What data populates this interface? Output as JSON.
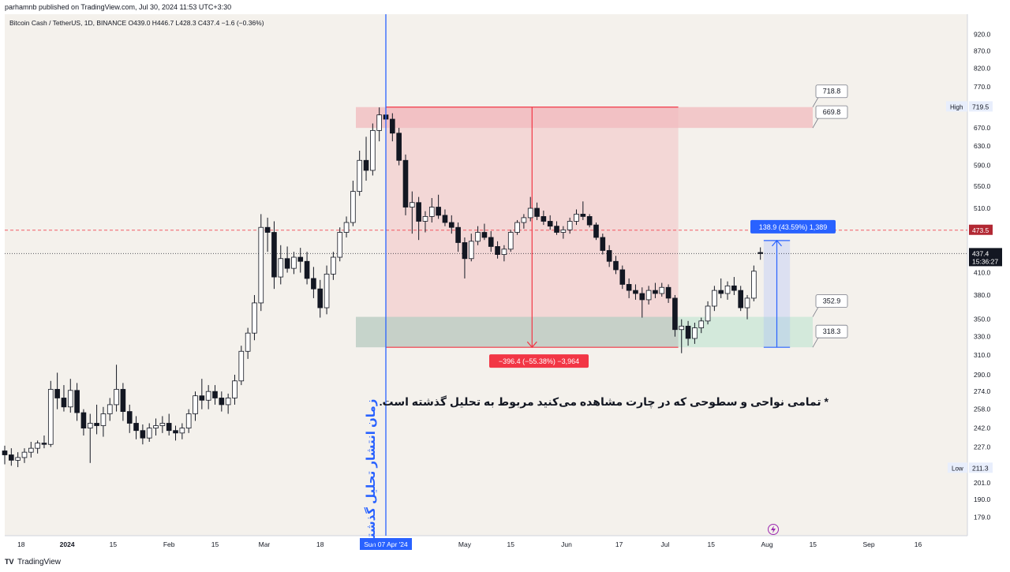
{
  "header": {
    "published_text": "parhamnb published on TradingView.com, Jul 30, 2024 11:53 UTC+3:30"
  },
  "footer": {
    "logo_text": "TV",
    "brand": "TradingView"
  },
  "colors": {
    "background": "#f4f1ec",
    "up_candle": "#ffffff",
    "down_candle": "#131722",
    "red_zone": "#f2b9bd",
    "green_zone": "#c8e6d6",
    "red_line": "#f23645",
    "blue_line": "#2962ff",
    "price_axis_bg": "#ffffff"
  },
  "chart_data": {
    "type": "candlestick",
    "title": "Bitcoin Cash / TetherUS, 1D, BINANCE  O439.0  H446.7  L428.3  C437.4  −1.6 (−0.36%)",
    "y_axis": {
      "scale": "log",
      "ylim": [
        168,
        985
      ],
      "ticks": [
        "920.0",
        "870.0",
        "820.0",
        "770.0",
        "719.5",
        "670.0",
        "630.0",
        "590.0",
        "550.0",
        "510.0",
        "473.5",
        "437.4",
        "410.0",
        "380.0",
        "350.0",
        "330.0",
        "310.0",
        "290.0",
        "274.0",
        "258.0",
        "242.0",
        "227.0",
        "211.3",
        "201.0",
        "190.0",
        "179.0"
      ]
    },
    "x_axis": {
      "range": [
        "2023-12-13",
        "2024-10-01"
      ],
      "ticks": [
        "18",
        "2024",
        "15",
        "Feb",
        "15",
        "Mar",
        "18",
        "Apr",
        "5",
        "May",
        "15",
        "Jun",
        "17",
        "Jul",
        "15",
        "Aug",
        "15",
        "Sep",
        "16"
      ],
      "highlight_label": "Sun 07 Apr '24"
    },
    "ohlc": [
      [
        "2023-12-13",
        224,
        228,
        214,
        221
      ],
      [
        "2023-12-15",
        221,
        226,
        213,
        217
      ],
      [
        "2023-12-17",
        217,
        223,
        212,
        219
      ],
      [
        "2023-12-19",
        219,
        226,
        215,
        223
      ],
      [
        "2023-12-21",
        223,
        231,
        219,
        226
      ],
      [
        "2023-12-23",
        226,
        232,
        222,
        230
      ],
      [
        "2023-12-25",
        230,
        236,
        226,
        229
      ],
      [
        "2023-12-27",
        229,
        284,
        227,
        276
      ],
      [
        "2023-12-29",
        276,
        292,
        258,
        268
      ],
      [
        "2023-12-31",
        268,
        280,
        256,
        260
      ],
      [
        "2024-01-02",
        260,
        286,
        255,
        275
      ],
      [
        "2024-01-04",
        275,
        282,
        248,
        255
      ],
      [
        "2024-01-06",
        255,
        258,
        236,
        242
      ],
      [
        "2024-01-08",
        242,
        254,
        215,
        246
      ],
      [
        "2024-01-10",
        246,
        262,
        237,
        244
      ],
      [
        "2024-01-12",
        244,
        260,
        235,
        254
      ],
      [
        "2024-01-14",
        254,
        268,
        248,
        262
      ],
      [
        "2024-01-16",
        262,
        300,
        256,
        276
      ],
      [
        "2024-01-18",
        276,
        282,
        248,
        256
      ],
      [
        "2024-01-20",
        256,
        262,
        238,
        246
      ],
      [
        "2024-01-22",
        246,
        252,
        233,
        240
      ],
      [
        "2024-01-24",
        240,
        245,
        229,
        234
      ],
      [
        "2024-01-26",
        234,
        246,
        231,
        242
      ],
      [
        "2024-01-28",
        242,
        250,
        236,
        244
      ],
      [
        "2024-01-30",
        244,
        252,
        238,
        246
      ],
      [
        "2024-02-01",
        246,
        254,
        236,
        240
      ],
      [
        "2024-02-03",
        240,
        244,
        232,
        238
      ],
      [
        "2024-02-05",
        238,
        246,
        233,
        242
      ],
      [
        "2024-02-07",
        242,
        258,
        238,
        254
      ],
      [
        "2024-02-09",
        254,
        274,
        248,
        270
      ],
      [
        "2024-02-11",
        270,
        286,
        258,
        266
      ],
      [
        "2024-02-13",
        266,
        280,
        258,
        274
      ],
      [
        "2024-02-15",
        274,
        280,
        262,
        268
      ],
      [
        "2024-02-17",
        268,
        274,
        256,
        262
      ],
      [
        "2024-02-19",
        262,
        272,
        254,
        268
      ],
      [
        "2024-02-21",
        268,
        290,
        262,
        284
      ],
      [
        "2024-02-23",
        284,
        320,
        280,
        314
      ],
      [
        "2024-02-25",
        314,
        340,
        306,
        334
      ],
      [
        "2024-02-27",
        334,
        380,
        326,
        370
      ],
      [
        "2024-02-29",
        370,
        500,
        360,
        478
      ],
      [
        "2024-03-02",
        478,
        494,
        440,
        470
      ],
      [
        "2024-03-04",
        470,
        488,
        388,
        404
      ],
      [
        "2024-03-06",
        404,
        450,
        394,
        430
      ],
      [
        "2024-03-08",
        430,
        448,
        410,
        416
      ],
      [
        "2024-03-10",
        416,
        440,
        408,
        432
      ],
      [
        "2024-03-12",
        432,
        446,
        410,
        426
      ],
      [
        "2024-03-14",
        426,
        440,
        394,
        402
      ],
      [
        "2024-03-16",
        402,
        418,
        376,
        388
      ],
      [
        "2024-03-18",
        388,
        400,
        352,
        364
      ],
      [
        "2024-03-20",
        364,
        420,
        356,
        408
      ],
      [
        "2024-03-22",
        408,
        440,
        400,
        432
      ],
      [
        "2024-03-24",
        432,
        478,
        426,
        470
      ],
      [
        "2024-03-26",
        470,
        496,
        462,
        486
      ],
      [
        "2024-03-28",
        486,
        560,
        480,
        540
      ],
      [
        "2024-03-30",
        540,
        620,
        532,
        600
      ],
      [
        "2024-04-01",
        600,
        650,
        560,
        580
      ],
      [
        "2024-04-03",
        580,
        680,
        570,
        664
      ],
      [
        "2024-04-05",
        664,
        718,
        640,
        700
      ],
      [
        "2024-04-07",
        700,
        720,
        660,
        690
      ],
      [
        "2024-04-09",
        690,
        704,
        640,
        658
      ],
      [
        "2024-04-11",
        658,
        670,
        590,
        600
      ],
      [
        "2024-04-13",
        600,
        612,
        498,
        512
      ],
      [
        "2024-04-15",
        512,
        540,
        468,
        520
      ],
      [
        "2024-04-17",
        520,
        530,
        458,
        488
      ],
      [
        "2024-04-19",
        488,
        505,
        470,
        496
      ],
      [
        "2024-04-21",
        496,
        528,
        486,
        512
      ],
      [
        "2024-04-23",
        512,
        534,
        492,
        498
      ],
      [
        "2024-04-25",
        498,
        508,
        480,
        486
      ],
      [
        "2024-04-27",
        486,
        498,
        468,
        478
      ],
      [
        "2024-04-29",
        478,
        486,
        440,
        454
      ],
      [
        "2024-05-01",
        454,
        462,
        402,
        430
      ],
      [
        "2024-05-03",
        430,
        468,
        426,
        456
      ],
      [
        "2024-05-05",
        456,
        480,
        450,
        470
      ],
      [
        "2024-05-07",
        470,
        484,
        458,
        462
      ],
      [
        "2024-05-09",
        462,
        472,
        440,
        448
      ],
      [
        "2024-05-11",
        448,
        456,
        430,
        436
      ],
      [
        "2024-05-13",
        436,
        450,
        426,
        444
      ],
      [
        "2024-05-15",
        444,
        474,
        440,
        470
      ],
      [
        "2024-05-17",
        470,
        490,
        466,
        486
      ],
      [
        "2024-05-19",
        486,
        500,
        476,
        494
      ],
      [
        "2024-05-21",
        494,
        530,
        488,
        510
      ],
      [
        "2024-05-23",
        510,
        520,
        490,
        496
      ],
      [
        "2024-05-25",
        496,
        506,
        482,
        488
      ],
      [
        "2024-05-27",
        488,
        498,
        474,
        480
      ],
      [
        "2024-05-29",
        480,
        488,
        466,
        470
      ],
      [
        "2024-05-31",
        470,
        480,
        460,
        474
      ],
      [
        "2024-06-02",
        474,
        494,
        468,
        488
      ],
      [
        "2024-06-04",
        488,
        508,
        482,
        500
      ],
      [
        "2024-06-06",
        500,
        522,
        490,
        496
      ],
      [
        "2024-06-08",
        496,
        500,
        478,
        482
      ],
      [
        "2024-06-10",
        482,
        486,
        458,
        462
      ],
      [
        "2024-06-12",
        462,
        468,
        436,
        442
      ],
      [
        "2024-06-14",
        442,
        450,
        418,
        426
      ],
      [
        "2024-06-16",
        426,
        434,
        408,
        414
      ],
      [
        "2024-06-18",
        414,
        420,
        388,
        394
      ],
      [
        "2024-06-20",
        394,
        402,
        376,
        386
      ],
      [
        "2024-06-22",
        386,
        394,
        374,
        382
      ],
      [
        "2024-06-24",
        382,
        390,
        352,
        374
      ],
      [
        "2024-06-26",
        374,
        392,
        368,
        386
      ],
      [
        "2024-06-28",
        386,
        396,
        376,
        382
      ],
      [
        "2024-06-30",
        382,
        396,
        378,
        390
      ],
      [
        "2024-07-02",
        390,
        394,
        370,
        376
      ],
      [
        "2024-07-04",
        376,
        380,
        330,
        338
      ],
      [
        "2024-07-06",
        338,
        350,
        312,
        342
      ],
      [
        "2024-07-08",
        342,
        348,
        320,
        328
      ],
      [
        "2024-07-10",
        328,
        346,
        322,
        340
      ],
      [
        "2024-07-12",
        340,
        352,
        334,
        348
      ],
      [
        "2024-07-14",
        348,
        372,
        344,
        366
      ],
      [
        "2024-07-16",
        366,
        392,
        360,
        386
      ],
      [
        "2024-07-18",
        386,
        402,
        376,
        382
      ],
      [
        "2024-07-20",
        382,
        398,
        374,
        392
      ],
      [
        "2024-07-22",
        392,
        404,
        380,
        386
      ],
      [
        "2024-07-24",
        386,
        392,
        360,
        364
      ],
      [
        "2024-07-26",
        364,
        380,
        350,
        376
      ],
      [
        "2024-07-28",
        376,
        420,
        372,
        412
      ],
      [
        "2024-07-30",
        439,
        446.7,
        428.3,
        437.4
      ]
    ],
    "price_labels": {
      "high_label": "High",
      "high_value": "719.5",
      "low_label": "Low",
      "low_value": "211.3",
      "level_473": "473.5",
      "current_price": "437.4",
      "countdown": "15:36:27"
    },
    "annotations": {
      "red_zone_levels": [
        "718.8",
        "669.8"
      ],
      "green_zone_levels": [
        "352.9",
        "318.3"
      ],
      "drop_label": "−396.4 (−55.38%) −3,964",
      "rise_label": "138.9 (43.59%) 1,389",
      "vertical_caption": "زمان انتشار تحلیل گذشته",
      "note": "* تمامی نواحی و سطوحی که در چارت مشاهده می‌کنید مربوط به تحلیل گذشته است."
    },
    "levels": {
      "red_zone": [
        669.8,
        718.8
      ],
      "green_zone": [
        318.3,
        352.9
      ],
      "dashed_level": 473.5,
      "dotted_level": 437.4,
      "publish_date": "2024-04-07",
      "drop_measure": {
        "start": "2024-04-07",
        "end": "2024-07-05",
        "from": 718.8,
        "to": 318.3
      },
      "rise_measure": {
        "start": "2024-07-31",
        "end": "2024-08-08",
        "from": 318.3,
        "to": 457.2
      }
    }
  }
}
